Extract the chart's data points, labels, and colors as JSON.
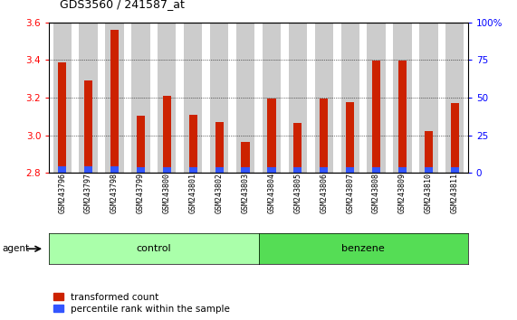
{
  "title": "GDS3560 / 241587_at",
  "samples": [
    "GSM243796",
    "GSM243797",
    "GSM243798",
    "GSM243799",
    "GSM243800",
    "GSM243801",
    "GSM243802",
    "GSM243803",
    "GSM243804",
    "GSM243805",
    "GSM243806",
    "GSM243807",
    "GSM243808",
    "GSM243809",
    "GSM243810",
    "GSM243811"
  ],
  "transformed_count": [
    3.385,
    3.29,
    3.56,
    3.105,
    3.21,
    3.11,
    3.07,
    2.965,
    3.195,
    3.065,
    3.195,
    3.175,
    3.395,
    3.395,
    3.02,
    3.17
  ],
  "percentile_rank": [
    4.5,
    4.5,
    4.5,
    3.5,
    3.5,
    3.5,
    3.5,
    3.5,
    3.5,
    3.5,
    3.5,
    3.5,
    3.5,
    3.5,
    3.5,
    3.5
  ],
  "bar_color_red": "#cc2200",
  "bar_color_blue": "#3355ff",
  "ymin": 2.8,
  "ymax": 3.6,
  "yright_min": 0,
  "yright_max": 100,
  "yticks_left": [
    2.8,
    3.0,
    3.2,
    3.4,
    3.6
  ],
  "yticks_right": [
    0,
    25,
    50,
    75,
    100
  ],
  "control_count": 8,
  "benzene_count": 8,
  "group_labels": [
    "control",
    "benzene"
  ],
  "agent_label": "agent",
  "legend_red": "transformed count",
  "legend_blue": "percentile rank within the sample",
  "control_color": "#aaffaa",
  "benzene_color": "#55dd55",
  "bg_color": "#ffffff",
  "bar_bg_color": "#cccccc",
  "bar_width": 0.7
}
